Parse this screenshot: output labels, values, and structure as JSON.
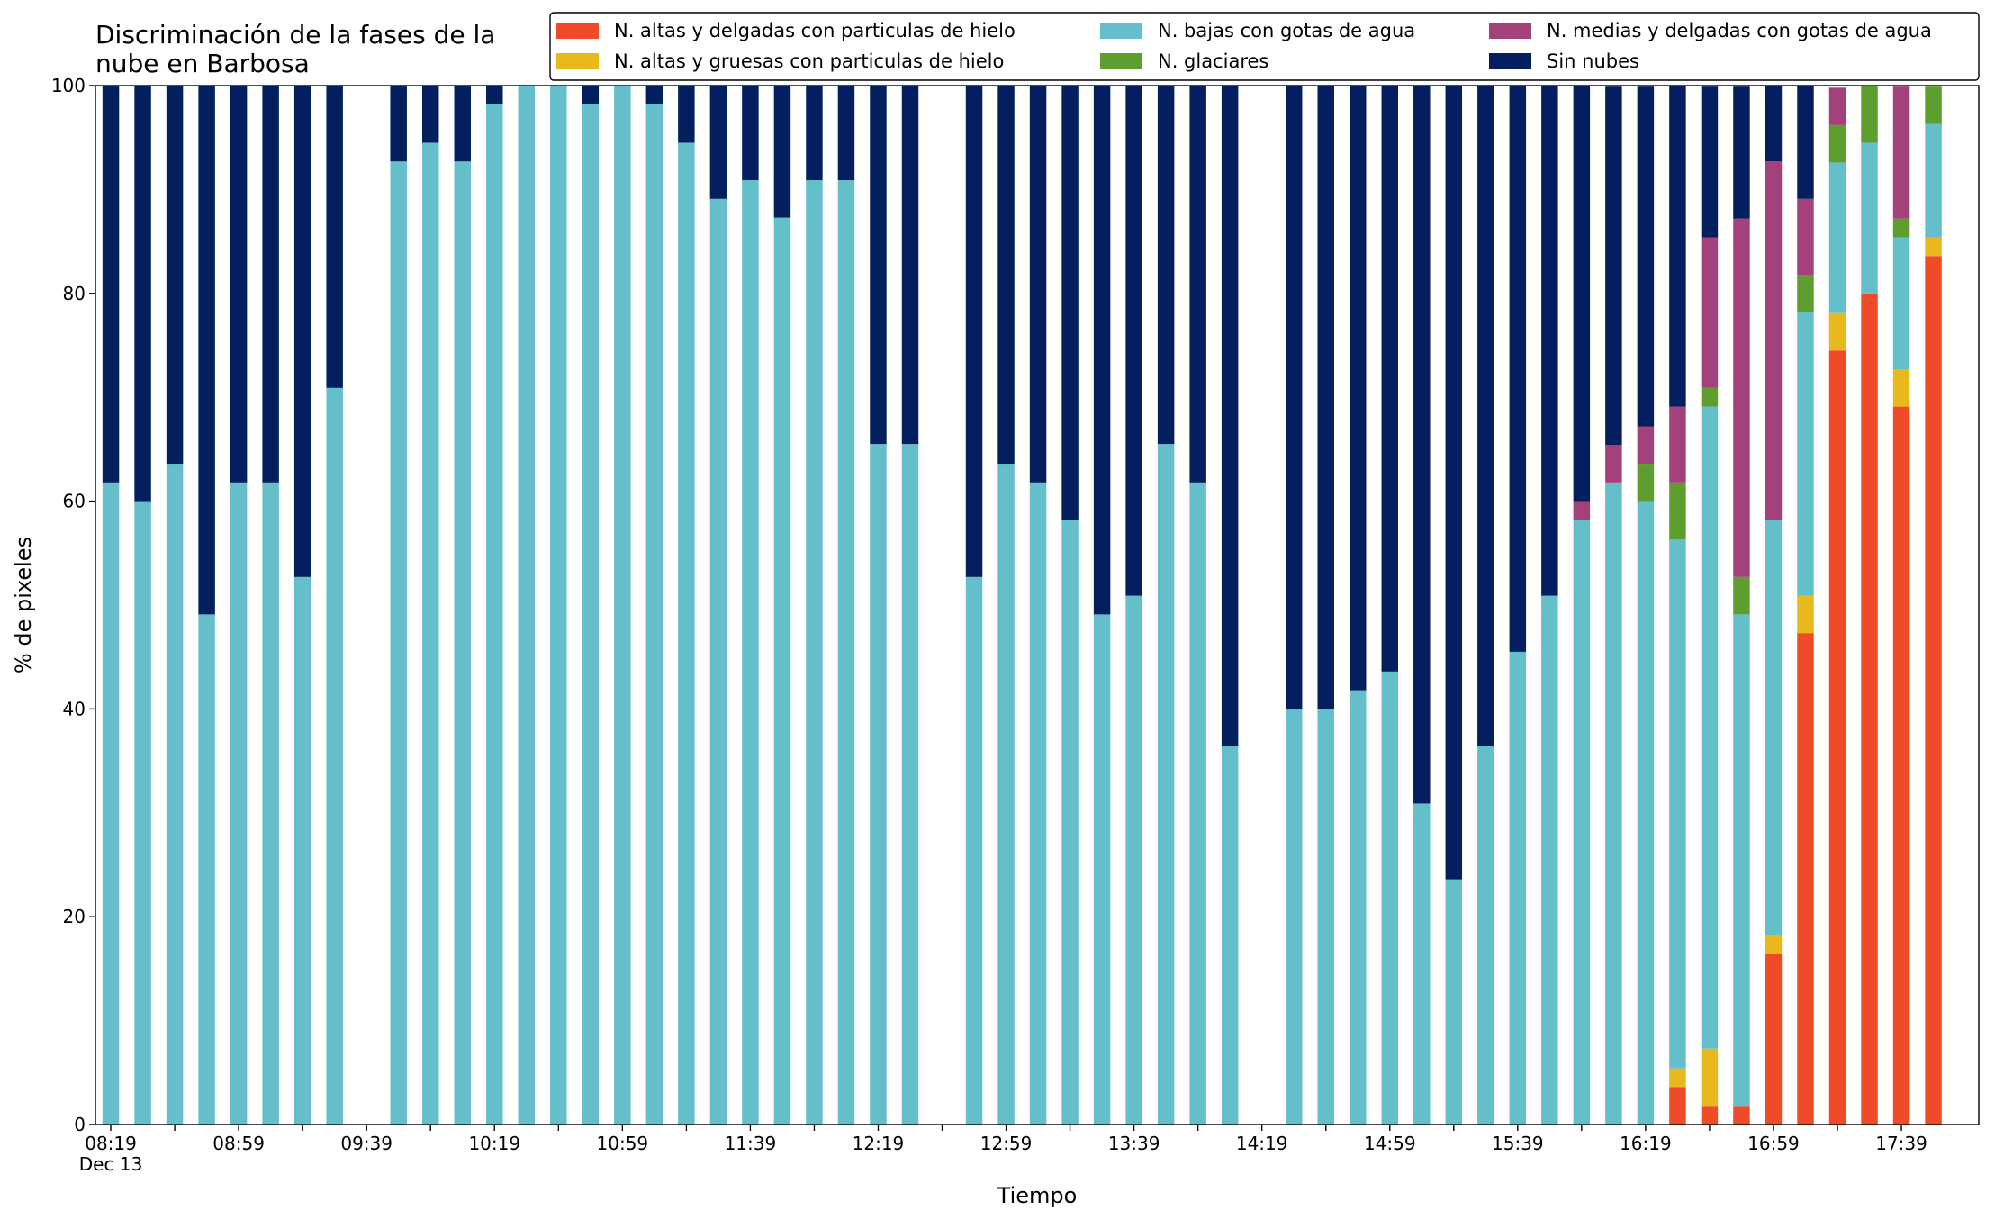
{
  "chart_data": {
    "type": "stacked_bar",
    "title": "Discriminación de la fases de la\nnube en Barbosa",
    "xlabel": "Tiempo",
    "ylabel": "% de pixeles",
    "categories": [
      "08:19\nDec 13",
      null,
      null,
      null,
      "08:59",
      null,
      null,
      null,
      "09:39",
      null,
      null,
      null,
      "10:19",
      null,
      null,
      null,
      "10:59",
      null,
      null,
      null,
      "11:39",
      null,
      null,
      null,
      "12:19",
      null,
      null,
      null,
      "12:59",
      null,
      null,
      null,
      "13:39",
      null,
      null,
      null,
      "14:19",
      null,
      null,
      null,
      "14:59",
      null,
      null,
      null,
      "15:39",
      null,
      null,
      null,
      "16:19",
      null,
      null,
      null,
      "16:59",
      null,
      null,
      null,
      "17:39",
      null
    ],
    "ylim": [
      0,
      100
    ],
    "yticks": [
      0,
      20,
      40,
      60,
      80,
      100
    ],
    "legend": "top-right",
    "series": [
      {
        "name": "N. altas y delgadas con particulas de hielo",
        "color": "#f04b28",
        "values": [
          0,
          0,
          0,
          0,
          0,
          0,
          0,
          0,
          null,
          0,
          0,
          0,
          0,
          0,
          0,
          0,
          0,
          0,
          0,
          0,
          0,
          0,
          0,
          0,
          0,
          0,
          null,
          0,
          0,
          0,
          0,
          0,
          0,
          0,
          0,
          0,
          null,
          0,
          0,
          0,
          0,
          0,
          0,
          0,
          0,
          0,
          0,
          0,
          0,
          3.6,
          1.8,
          1.8,
          16.4,
          47.3,
          74.5,
          80,
          69.1,
          83.6
        ]
      },
      {
        "name": "N. altas y gruesas con particulas de hielo",
        "color": "#e8b81c",
        "values": [
          0,
          0,
          0,
          0,
          0,
          0,
          0,
          0,
          null,
          0,
          0,
          0,
          0,
          0,
          0,
          0,
          0,
          0,
          0,
          0,
          0,
          0,
          0,
          0,
          0,
          0,
          null,
          0,
          0,
          0,
          0,
          0,
          0,
          0,
          0,
          0,
          null,
          0,
          0,
          0,
          0,
          0,
          0,
          0,
          0,
          0,
          0,
          0,
          0,
          1.8,
          5.5,
          0,
          1.8,
          3.6,
          3.6,
          0,
          3.6,
          1.8
        ]
      },
      {
        "name": "N. bajas con gotas de agua",
        "color": "#64bfca",
        "values": [
          61.8,
          60,
          63.6,
          49.1,
          61.8,
          61.8,
          52.7,
          70.9,
          null,
          92.7,
          94.5,
          92.7,
          98.2,
          100,
          100,
          98.2,
          100,
          98.2,
          94.5,
          89.1,
          90.9,
          87.3,
          90.9,
          90.9,
          65.5,
          65.5,
          null,
          52.7,
          63.6,
          61.8,
          58.2,
          49.1,
          50.9,
          65.5,
          61.8,
          36.4,
          null,
          40,
          40,
          41.8,
          43.6,
          30.9,
          23.6,
          36.4,
          45.5,
          50.9,
          58.2,
          61.8,
          60,
          50.9,
          61.8,
          47.3,
          40,
          27.3,
          14.5,
          14.5,
          12.7,
          10.9
        ]
      },
      {
        "name": "N. glaciares",
        "color": "#5d9e2f",
        "values": [
          0,
          0,
          0,
          0,
          0,
          0,
          0,
          0,
          null,
          0,
          0,
          0,
          0,
          0,
          0,
          0,
          0,
          0,
          0,
          0,
          0,
          0,
          0,
          0,
          0,
          0,
          null,
          0,
          0,
          0,
          0,
          0,
          0,
          0,
          0,
          0,
          null,
          0,
          0,
          0,
          0,
          0,
          0,
          0,
          0,
          0,
          0,
          0,
          3.6,
          5.5,
          1.8,
          3.6,
          0,
          3.6,
          3.6,
          5.5,
          1.8,
          3.6
        ]
      },
      {
        "name": "N. medias y delgadas con gotas de agua",
        "color": "#a2417a",
        "values": [
          0,
          0,
          0,
          0,
          0,
          0,
          0,
          0,
          null,
          0,
          0,
          0,
          0,
          0,
          0,
          0,
          0,
          0,
          0,
          0,
          0,
          0,
          0,
          0,
          0,
          0,
          null,
          0,
          0,
          0,
          0,
          0,
          0,
          0,
          0,
          0,
          null,
          0,
          0,
          0,
          0,
          0,
          0,
          0,
          0,
          0,
          1.8,
          3.6,
          3.6,
          7.3,
          14.5,
          34.5,
          34.5,
          7.3,
          3.6,
          0,
          12.7,
          0
        ]
      },
      {
        "name": "Sin nubes",
        "color": "#031f5e",
        "values": [
          38.2,
          40,
          36.4,
          50.9,
          38.2,
          38.2,
          47.3,
          29.1,
          null,
          7.3,
          5.5,
          7.3,
          1.8,
          0,
          0,
          1.8,
          0,
          1.8,
          5.5,
          10.9,
          9.1,
          12.7,
          9.1,
          9.1,
          34.5,
          34.5,
          null,
          47.3,
          36.4,
          38.2,
          41.8,
          50.9,
          49.1,
          34.5,
          38.2,
          63.6,
          null,
          60,
          60,
          58.2,
          56.4,
          69.1,
          76.4,
          63.6,
          54.5,
          49.1,
          40,
          34.5,
          32.7,
          30.9,
          14.5,
          12.7,
          7.3,
          10.9,
          0,
          0,
          0,
          0
        ]
      }
    ]
  }
}
